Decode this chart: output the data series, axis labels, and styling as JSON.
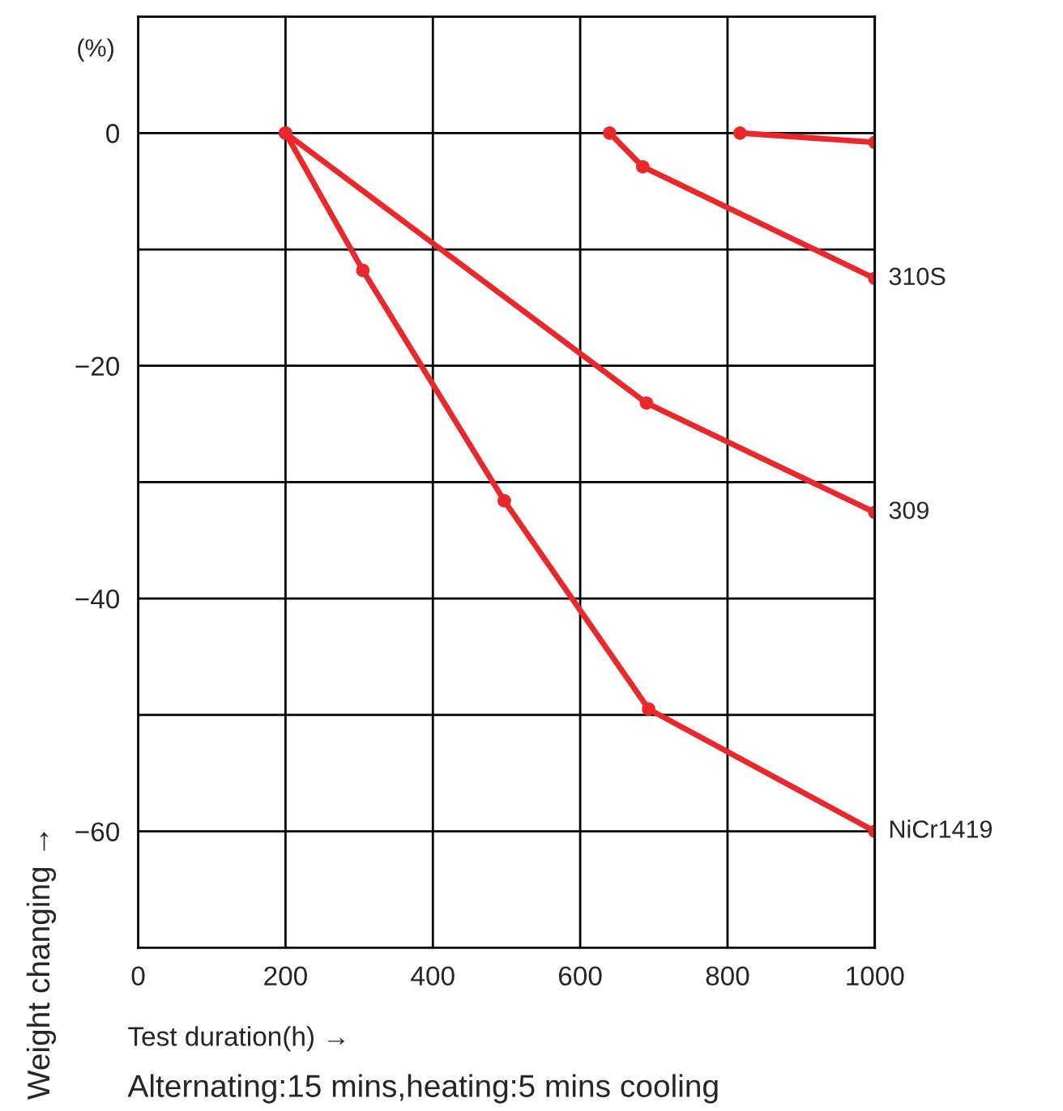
{
  "chart_data": {
    "type": "line",
    "ylabel": "Weight changing →",
    "xlabel": "Test duration(h) →",
    "annotations": [
      "(%)",
      "Alternating:15 mins,heating:5 mins cooling"
    ],
    "xlim": [
      0,
      1000
    ],
    "xticks": [
      0,
      200,
      400,
      600,
      800,
      1000
    ],
    "ylim": [
      -70,
      10
    ],
    "yticks": [
      {
        "value": -70,
        "label": null
      },
      -60,
      {
        "value": -50,
        "label": null
      },
      -40,
      {
        "value": -30,
        "label": null
      },
      -20,
      {
        "value": -10,
        "label": null
      },
      0,
      {
        "value": 10,
        "label": null
      }
    ],
    "grid": true,
    "marker": "circle",
    "line_style": "solid",
    "legend": false,
    "series": [
      {
        "color": "#e8282b",
        "x": [
          817,
          1000
        ],
        "values": [
          0,
          -0.8
        ]
      },
      {
        "name": "310S",
        "color": "#e8282b",
        "x": [
          640,
          685,
          1000
        ],
        "values": [
          0,
          -2.9,
          -12.5
        ]
      },
      {
        "name": "309",
        "color": "#e8282b",
        "x": [
          200,
          690,
          1000
        ],
        "values": [
          0,
          -23.2,
          -32.6
        ]
      },
      {
        "name": "NiCr1419",
        "color": "#e8282b",
        "x": [
          200,
          305,
          497,
          693,
          1000
        ],
        "values": [
          0,
          -11.8,
          -31.6,
          -49.5,
          -60
        ]
      }
    ]
  }
}
